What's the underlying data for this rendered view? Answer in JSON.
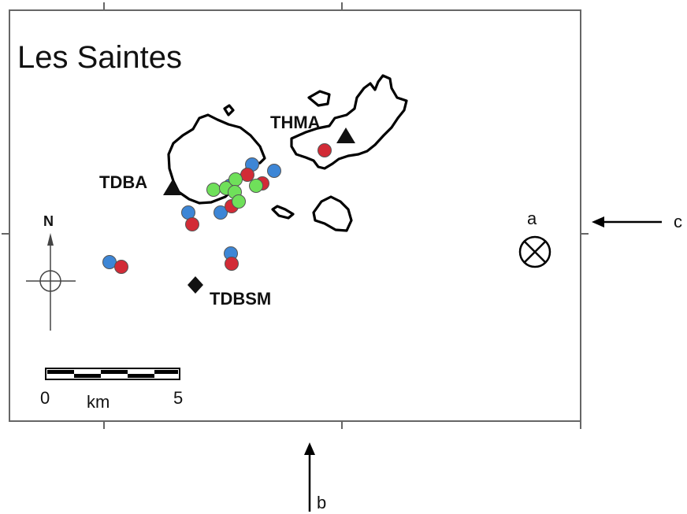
{
  "title": "Les Saintes",
  "stations": {
    "tdba": {
      "label": "TDBA",
      "symbol": "triangle"
    },
    "thma": {
      "label": "THMA",
      "symbol": "triangle"
    },
    "tdbsm": {
      "label": "TDBSM",
      "symbol": "diamond"
    }
  },
  "compass": {
    "label": "N"
  },
  "scale_bar": {
    "start": "0",
    "end": "5",
    "unit": "km"
  },
  "directions": {
    "a": "a",
    "b": "b",
    "c": "c"
  },
  "colors": {
    "blue_events": "#3d86d6",
    "red_events": "#d22b36",
    "green_events": "#6fe05a",
    "coastline": "#000000"
  }
}
